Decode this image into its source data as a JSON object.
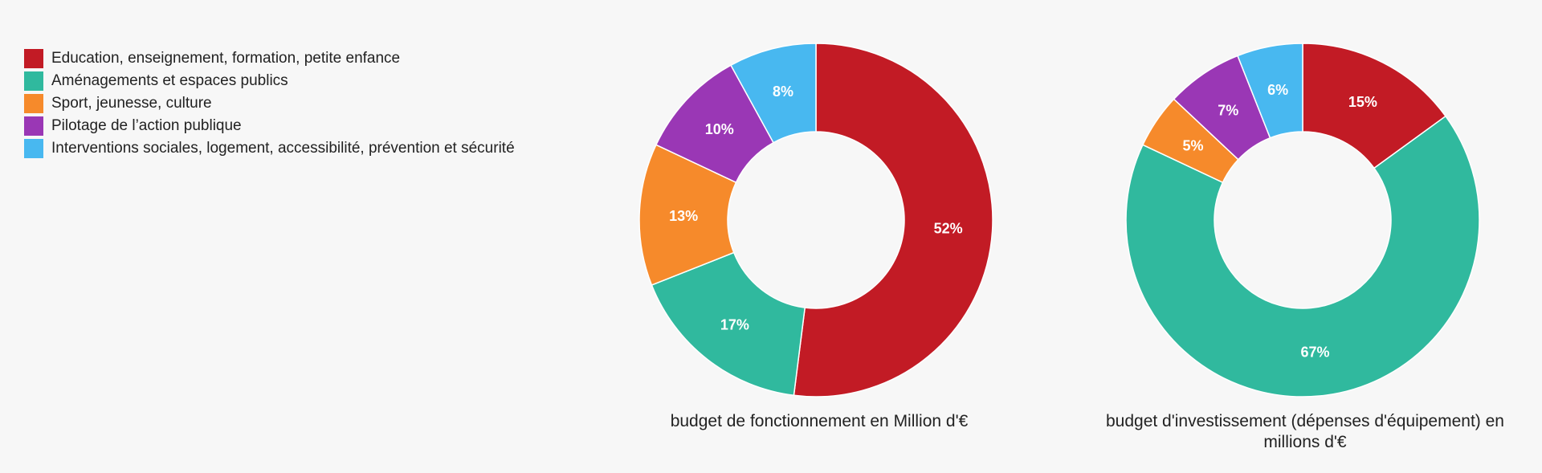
{
  "legend": [
    {
      "label": "Education, enseignement, formation, petite enfance",
      "color": "#c21b25"
    },
    {
      "label": "Aménagements et espaces publics",
      "color": "#30b99e"
    },
    {
      "label": "Sport, jeunesse, culture",
      "color": "#f68a2b"
    },
    {
      "label": "Pilotage de l’action publique",
      "color": "#9a37b5"
    },
    {
      "label": "Interventions sociales, logement, accessibilité, prévention et sécurité",
      "color": "#48b8f0"
    }
  ],
  "chart_data": [
    {
      "type": "pie",
      "donut": true,
      "title": "budget de fonctionnement en Million d'€",
      "categories": [
        "Education, enseignement, formation, petite enfance",
        "Aménagements et espaces publics",
        "Sport, jeunesse, culture",
        "Pilotage de l’action publique",
        "Interventions sociales, logement, accessibilité, prévention et sécurité"
      ],
      "values": [
        52,
        17,
        13,
        10,
        8
      ],
      "labels": [
        "52%",
        "17%",
        "13%",
        "10%",
        "8%"
      ],
      "colors": [
        "#c21b25",
        "#30b99e",
        "#f68a2b",
        "#9a37b5",
        "#48b8f0"
      ],
      "legend": "left"
    },
    {
      "type": "pie",
      "donut": true,
      "title": "budget d'investissement (dépenses d'équipement) en millions d'€",
      "categories": [
        "Education, enseignement, formation, petite enfance",
        "Aménagements et espaces publics",
        "Sport, jeunesse, culture",
        "Pilotage de l’action publique",
        "Interventions sociales, logement, accessibilité, prévention et sécurité"
      ],
      "values": [
        15,
        67,
        5,
        7,
        6
      ],
      "labels": [
        "15%",
        "67%",
        "5%",
        "7%",
        "6%"
      ],
      "colors": [
        "#c21b25",
        "#30b99e",
        "#f68a2b",
        "#9a37b5",
        "#48b8f0"
      ],
      "legend": "left"
    }
  ]
}
